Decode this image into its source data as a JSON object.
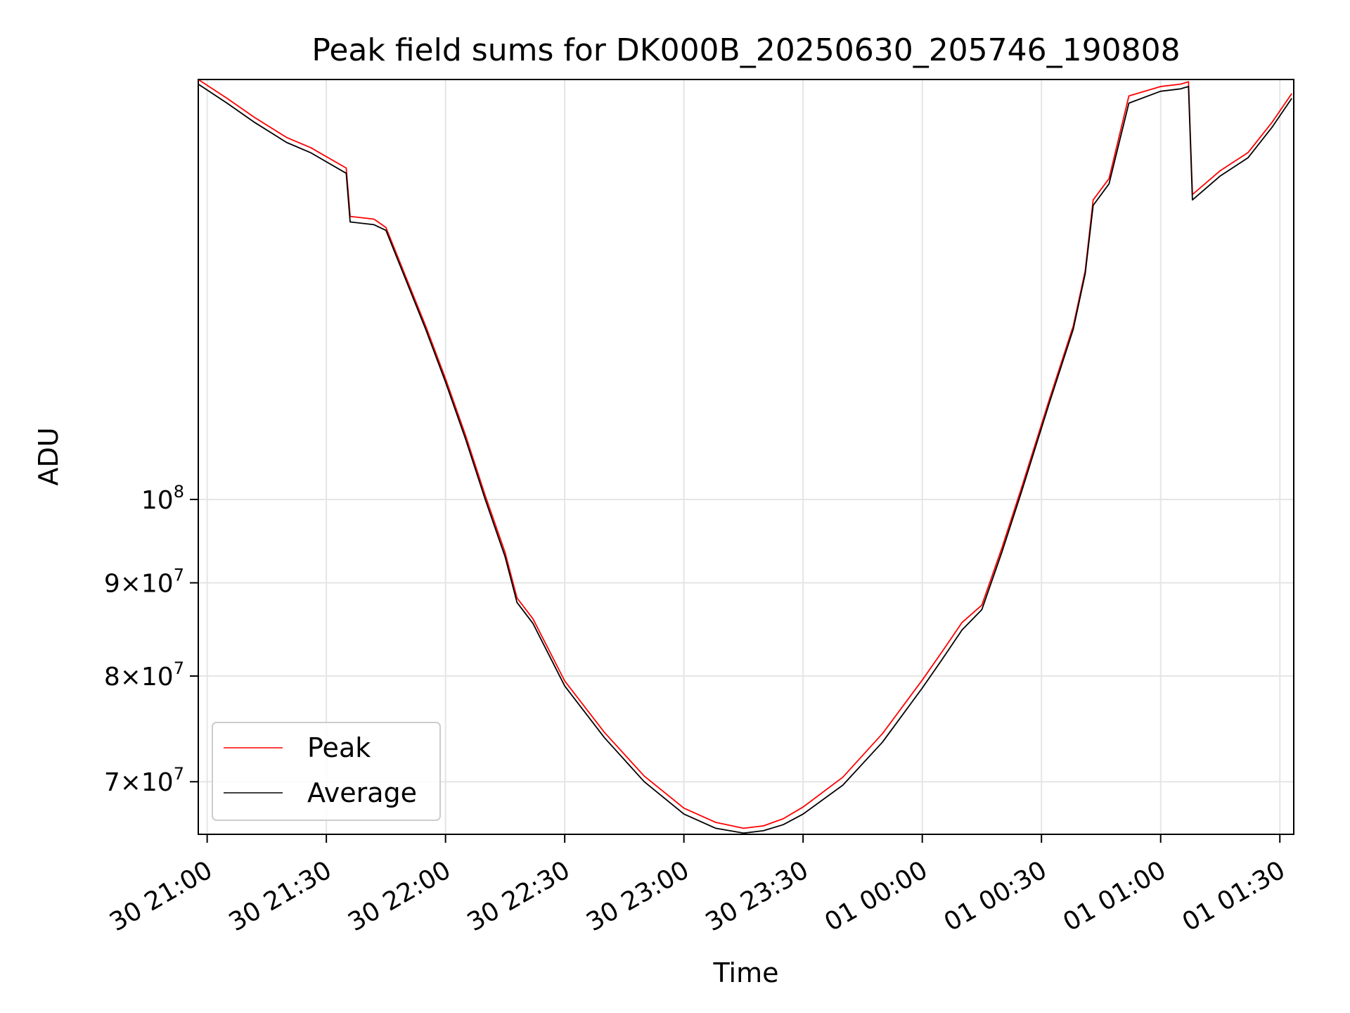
{
  "chart_data": {
    "type": "line",
    "title": "Peak field sums for DK000B_20250630_205746_190808",
    "xlabel": "Time",
    "ylabel": "ADU",
    "y_scale": "log",
    "ylim": [
      65500000,
      170000000
    ],
    "xlim": [
      "2025-06-30 20:57:46",
      "2025-07-01 01:33:30"
    ],
    "grid": true,
    "legend_position": "lower-left",
    "x_ticks": [
      {
        "t": "2025-06-30 21:00",
        "label": "30 21:00"
      },
      {
        "t": "2025-06-30 21:30",
        "label": "30 21:30"
      },
      {
        "t": "2025-06-30 22:00",
        "label": "30 22:00"
      },
      {
        "t": "2025-06-30 22:30",
        "label": "30 22:30"
      },
      {
        "t": "2025-06-30 23:00",
        "label": "30 23:00"
      },
      {
        "t": "2025-06-30 23:30",
        "label": "30 23:30"
      },
      {
        "t": "2025-07-01 00:00",
        "label": "01 00:00"
      },
      {
        "t": "2025-07-01 00:30",
        "label": "01 00:30"
      },
      {
        "t": "2025-07-01 01:00",
        "label": "01 01:00"
      },
      {
        "t": "2025-07-01 01:30",
        "label": "01 01:30"
      }
    ],
    "y_ticks": [
      {
        "value": 70000000,
        "mantissa": "7",
        "sup": "7"
      },
      {
        "value": 80000000,
        "mantissa": "8",
        "sup": "7"
      },
      {
        "value": 90000000,
        "mantissa": "9",
        "sup": "7"
      },
      {
        "value": 100000000,
        "mantissa": "",
        "sup": "8"
      }
    ],
    "series": [
      {
        "name": "Average",
        "color": "#000000",
        "x": [
          "2025-06-30 20:57:46",
          "2025-06-30 21:05",
          "2025-06-30 21:12",
          "2025-06-30 21:20",
          "2025-06-30 21:26",
          "2025-06-30 21:35",
          "2025-06-30 21:36",
          "2025-06-30 21:42",
          "2025-06-30 21:45",
          "2025-06-30 21:50",
          "2025-06-30 21:55",
          "2025-06-30 22:00",
          "2025-06-30 22:05",
          "2025-06-30 22:10",
          "2025-06-30 22:15",
          "2025-06-30 22:18",
          "2025-06-30 22:22",
          "2025-06-30 22:30",
          "2025-06-30 22:40",
          "2025-06-30 22:50",
          "2025-06-30 23:00",
          "2025-06-30 23:08",
          "2025-06-30 23:15",
          "2025-06-30 23:20",
          "2025-06-30 23:25",
          "2025-06-30 23:30",
          "2025-06-30 23:40",
          "2025-06-30 23:50",
          "2025-07-01 00:00",
          "2025-07-01 00:05",
          "2025-07-01 00:10",
          "2025-07-01 00:15",
          "2025-07-01 00:20",
          "2025-07-01 00:25",
          "2025-07-01 00:32",
          "2025-07-01 00:38",
          "2025-07-01 00:41",
          "2025-07-01 00:43",
          "2025-07-01 00:47",
          "2025-07-01 00:52",
          "2025-07-01 01:00",
          "2025-07-01 01:05",
          "2025-07-01 01:07",
          "2025-07-01 01:08",
          "2025-07-01 01:15",
          "2025-07-01 01:22",
          "2025-07-01 01:28",
          "2025-07-01 01:33"
        ],
        "y": [
          169000000,
          165000000,
          161000000,
          157000000,
          155000000,
          151000000,
          142000000,
          141500000,
          140500000,
          132000000,
          124000000,
          116000000,
          108000000,
          100000000,
          93000000,
          87800000,
          85500000,
          79000000,
          74000000,
          70000000,
          67200000,
          66000000,
          65600000,
          65800000,
          66300000,
          67200000,
          69700000,
          73600000,
          78800000,
          81700000,
          84800000,
          87000000,
          93500000,
          101000000,
          113000000,
          124000000,
          133000000,
          145000000,
          149000000,
          165000000,
          167500000,
          168000000,
          168500000,
          146000000,
          150500000,
          154000000,
          160000000,
          166000000
        ]
      },
      {
        "name": "Peak",
        "color": "#ff0000",
        "x": [
          "2025-06-30 20:57:46",
          "2025-06-30 21:05",
          "2025-06-30 21:12",
          "2025-06-30 21:20",
          "2025-06-30 21:26",
          "2025-06-30 21:35",
          "2025-06-30 21:36",
          "2025-06-30 21:42",
          "2025-06-30 21:45",
          "2025-06-30 21:50",
          "2025-06-30 21:55",
          "2025-06-30 22:00",
          "2025-06-30 22:05",
          "2025-06-30 22:10",
          "2025-06-30 22:15",
          "2025-06-30 22:18",
          "2025-06-30 22:22",
          "2025-06-30 22:30",
          "2025-06-30 22:40",
          "2025-06-30 22:50",
          "2025-06-30 23:00",
          "2025-06-30 23:08",
          "2025-06-30 23:15",
          "2025-06-30 23:20",
          "2025-06-30 23:25",
          "2025-06-30 23:30",
          "2025-06-30 23:40",
          "2025-06-30 23:50",
          "2025-07-01 00:00",
          "2025-07-01 00:05",
          "2025-07-01 00:10",
          "2025-07-01 00:15",
          "2025-07-01 00:20",
          "2025-07-01 00:25",
          "2025-07-01 00:32",
          "2025-07-01 00:38",
          "2025-07-01 00:41",
          "2025-07-01 00:43",
          "2025-07-01 00:47",
          "2025-07-01 00:52",
          "2025-07-01 01:00",
          "2025-07-01 01:05",
          "2025-07-01 01:07",
          "2025-07-01 01:08",
          "2025-07-01 01:15",
          "2025-07-01 01:22",
          "2025-07-01 01:28",
          "2025-07-01 01:33"
        ],
        "y": [
          170000000,
          166000000,
          162000000,
          158000000,
          156000000,
          152000000,
          143000000,
          142500000,
          141000000,
          132500000,
          124500000,
          116500000,
          108500000,
          100500000,
          93500000,
          88300000,
          86000000,
          79500000,
          74500000,
          70500000,
          67700000,
          66500000,
          66000000,
          66200000,
          66800000,
          67800000,
          70400000,
          74400000,
          79600000,
          82500000,
          85600000,
          87500000,
          94000000,
          101500000,
          113500000,
          124500000,
          133500000,
          146000000,
          150000000,
          166500000,
          168500000,
          169000000,
          169500000,
          147000000,
          151500000,
          155000000,
          161000000,
          167000000
        ]
      }
    ]
  }
}
